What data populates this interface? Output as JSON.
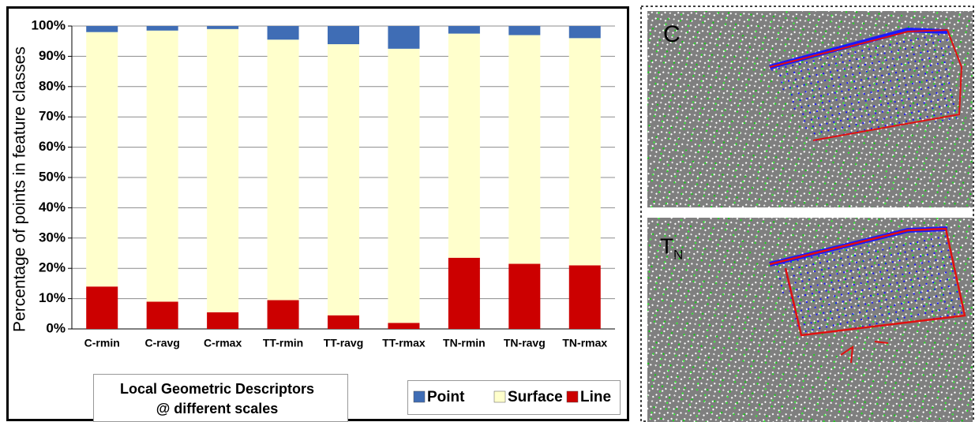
{
  "chart_data": {
    "type": "stacked_bar",
    "ylabel": "Percentage of points in feature classes",
    "xlabel": [
      "Local Geometric Descriptors",
      "@ different scales"
    ],
    "categories": [
      "C-rmin",
      "C-ravg",
      "C-rmax",
      "TT-rmin",
      "TT-ravg",
      "TT-rmax",
      "TN-rmin",
      "TN-ravg",
      "TN-rmax"
    ],
    "series": [
      {
        "name": "Point",
        "color": "#3f6db5",
        "values": [
          2,
          1.5,
          1,
          4.5,
          6,
          7.5,
          2.5,
          3,
          4
        ]
      },
      {
        "name": "Surface",
        "color": "#ffffcc",
        "values": [
          84,
          89.5,
          93.5,
          86,
          89.5,
          90.5,
          74,
          75.5,
          75
        ]
      },
      {
        "name": "Line",
        "color": "#cc0000",
        "values": [
          14,
          9,
          5.5,
          9.5,
          4.5,
          2,
          23.5,
          21.5,
          21
        ]
      }
    ],
    "ylim": [
      0,
      100
    ],
    "yticks": [
      {
        "value": 0,
        "label": "0%"
      },
      {
        "value": 10,
        "label": "10%"
      },
      {
        "value": 20,
        "label": "20%"
      },
      {
        "value": 30,
        "label": "30%"
      },
      {
        "value": 40,
        "label": "40%"
      },
      {
        "value": 50,
        "label": "50%"
      },
      {
        "value": 60,
        "label": "60%"
      },
      {
        "value": 70,
        "label": "70%"
      },
      {
        "value": 80,
        "label": "80%"
      },
      {
        "value": 90,
        "label": "90%"
      },
      {
        "value": 100,
        "label": "100%"
      }
    ],
    "grid": true,
    "legend": "bottom-right"
  },
  "images": [
    {
      "label": "C"
    },
    {
      "label": "T",
      "subscript": "N"
    }
  ]
}
